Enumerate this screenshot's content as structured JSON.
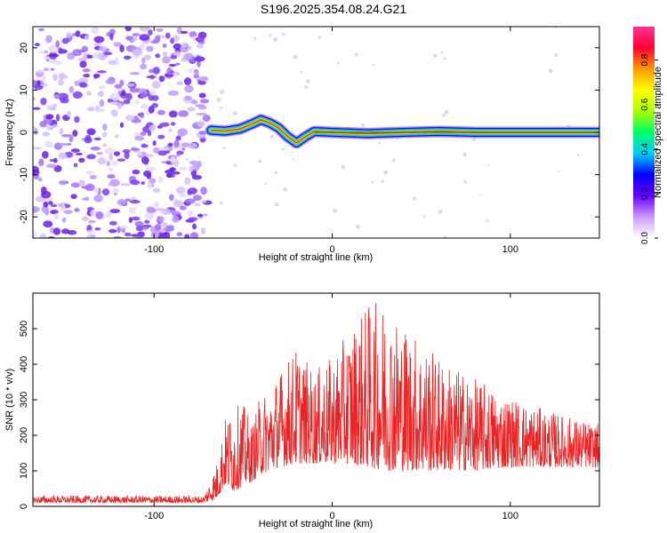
{
  "title": "S196.2025.354.08.24.G21",
  "chart_data": [
    {
      "type": "heatmap",
      "name": "spectrogram",
      "xlabel": "Height of straight line (km)",
      "ylabel": "Frequency (Hz)",
      "xlim": [
        -168,
        150
      ],
      "ylim": [
        -25,
        25
      ],
      "xticks": [
        -100,
        0,
        100
      ],
      "yticks": [
        -20,
        -10,
        0,
        10,
        20
      ],
      "colorbar": {
        "label": "Normalized spectral amplitude",
        "range": [
          0.0,
          0.95
        ],
        "ticks": [
          0.0,
          0.2,
          0.4,
          0.6,
          0.8
        ],
        "tick_labels": [
          "0.0",
          "0.2",
          "0.4",
          "0.6",
          "0.8"
        ],
        "colors": [
          "#ffffff",
          "#cc99ff",
          "#6600ff",
          "#0000ff",
          "#00ccff",
          "#00ff66",
          "#aaff00",
          "#ffff00",
          "#ff9900",
          "#ff0033",
          "#ff3399"
        ]
      },
      "noise_region_end_km": -70,
      "signal_track": [
        {
          "x": -68,
          "y": 0.5
        },
        {
          "x": -60,
          "y": 0.3
        },
        {
          "x": -52,
          "y": 0.8
        },
        {
          "x": -45,
          "y": 2.0
        },
        {
          "x": -40,
          "y": 3.0
        },
        {
          "x": -35,
          "y": 2.2
        },
        {
          "x": -30,
          "y": 1.0
        },
        {
          "x": -25,
          "y": -1.0
        },
        {
          "x": -20,
          "y": -2.5
        },
        {
          "x": -15,
          "y": -1.0
        },
        {
          "x": -10,
          "y": 0.2
        },
        {
          "x": 0,
          "y": 0.0
        },
        {
          "x": 20,
          "y": -0.3
        },
        {
          "x": 40,
          "y": 0.0
        },
        {
          "x": 60,
          "y": 0.2
        },
        {
          "x": 80,
          "y": 0.0
        },
        {
          "x": 100,
          "y": 0.0
        },
        {
          "x": 150,
          "y": 0.0
        }
      ]
    },
    {
      "type": "line",
      "name": "snr",
      "xlabel": "Height of straight line (km)",
      "ylabel": "SNR (10 * v/v)",
      "xlim": [
        -168,
        150
      ],
      "ylim": [
        0,
        600
      ],
      "xticks": [
        -100,
        0,
        100
      ],
      "yticks": [
        0,
        100,
        200,
        300,
        400,
        500
      ],
      "line_color": "#ee2222",
      "envelope": {
        "x": [
          -168,
          -140,
          -100,
          -72,
          -65,
          -60,
          -55,
          -50,
          -45,
          -40,
          -35,
          -30,
          -20,
          -10,
          0,
          10,
          20,
          30,
          40,
          50,
          60,
          80,
          100,
          120,
          150
        ],
        "max": [
          30,
          30,
          30,
          30,
          120,
          250,
          280,
          290,
          230,
          320,
          330,
          380,
          450,
          380,
          420,
          500,
          570,
          580,
          520,
          470,
          420,
          360,
          310,
          270,
          230
        ],
        "min": [
          10,
          10,
          10,
          10,
          20,
          60,
          40,
          60,
          70,
          90,
          100,
          110,
          120,
          120,
          120,
          120,
          110,
          100,
          100,
          100,
          100,
          100,
          110,
          110,
          110
        ]
      }
    }
  ]
}
